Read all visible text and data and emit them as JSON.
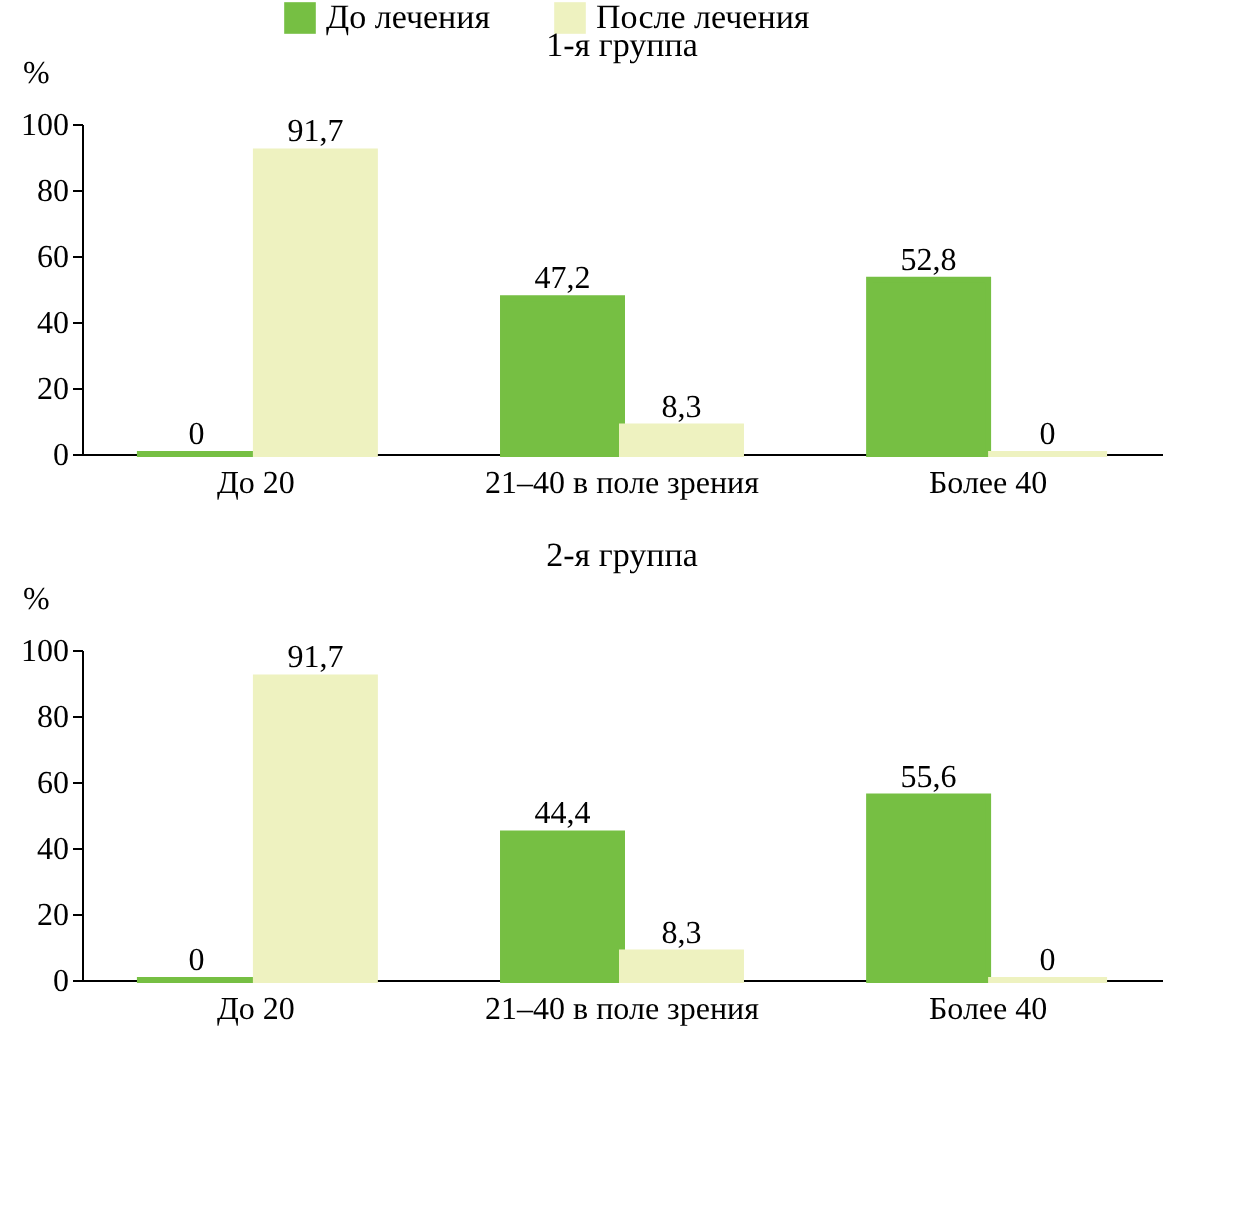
{
  "chart_data": [
    {
      "type": "bar",
      "title": "1-я группа",
      "ylabel": "%",
      "categories": [
        "До 20",
        "21–40 в поле зрения",
        "Более 40"
      ],
      "ylim": [
        0,
        100
      ],
      "yticks": [
        0,
        20,
        40,
        60,
        80,
        100
      ],
      "grid": false,
      "legend": "top",
      "series": [
        {
          "name": "До лечения",
          "color": "#76bf43",
          "values": [
            0,
            47.2,
            52.8
          ],
          "value_labels": [
            "0",
            "47,2",
            "52,8"
          ]
        },
        {
          "name": "После лечения",
          "color": "#eef2c0",
          "values": [
            91.7,
            8.3,
            0
          ],
          "value_labels": [
            "91,7",
            "8,3",
            "0"
          ]
        }
      ]
    },
    {
      "type": "bar",
      "title": "2-я группа",
      "ylabel": "%",
      "categories": [
        "До 20",
        "21–40 в поле зрения",
        "Более 40"
      ],
      "ylim": [
        0,
        100
      ],
      "yticks": [
        0,
        20,
        40,
        60,
        80,
        100
      ],
      "grid": false,
      "series": [
        {
          "color": "#76bf43",
          "values": [
            0,
            44.4,
            55.6
          ],
          "value_labels": [
            "0",
            "44,4",
            "55,6"
          ]
        },
        {
          "color": "#eef2c0",
          "values": [
            91.7,
            8.3,
            0
          ],
          "value_labels": [
            "91,7",
            "8,3",
            "0"
          ]
        }
      ]
    }
  ]
}
